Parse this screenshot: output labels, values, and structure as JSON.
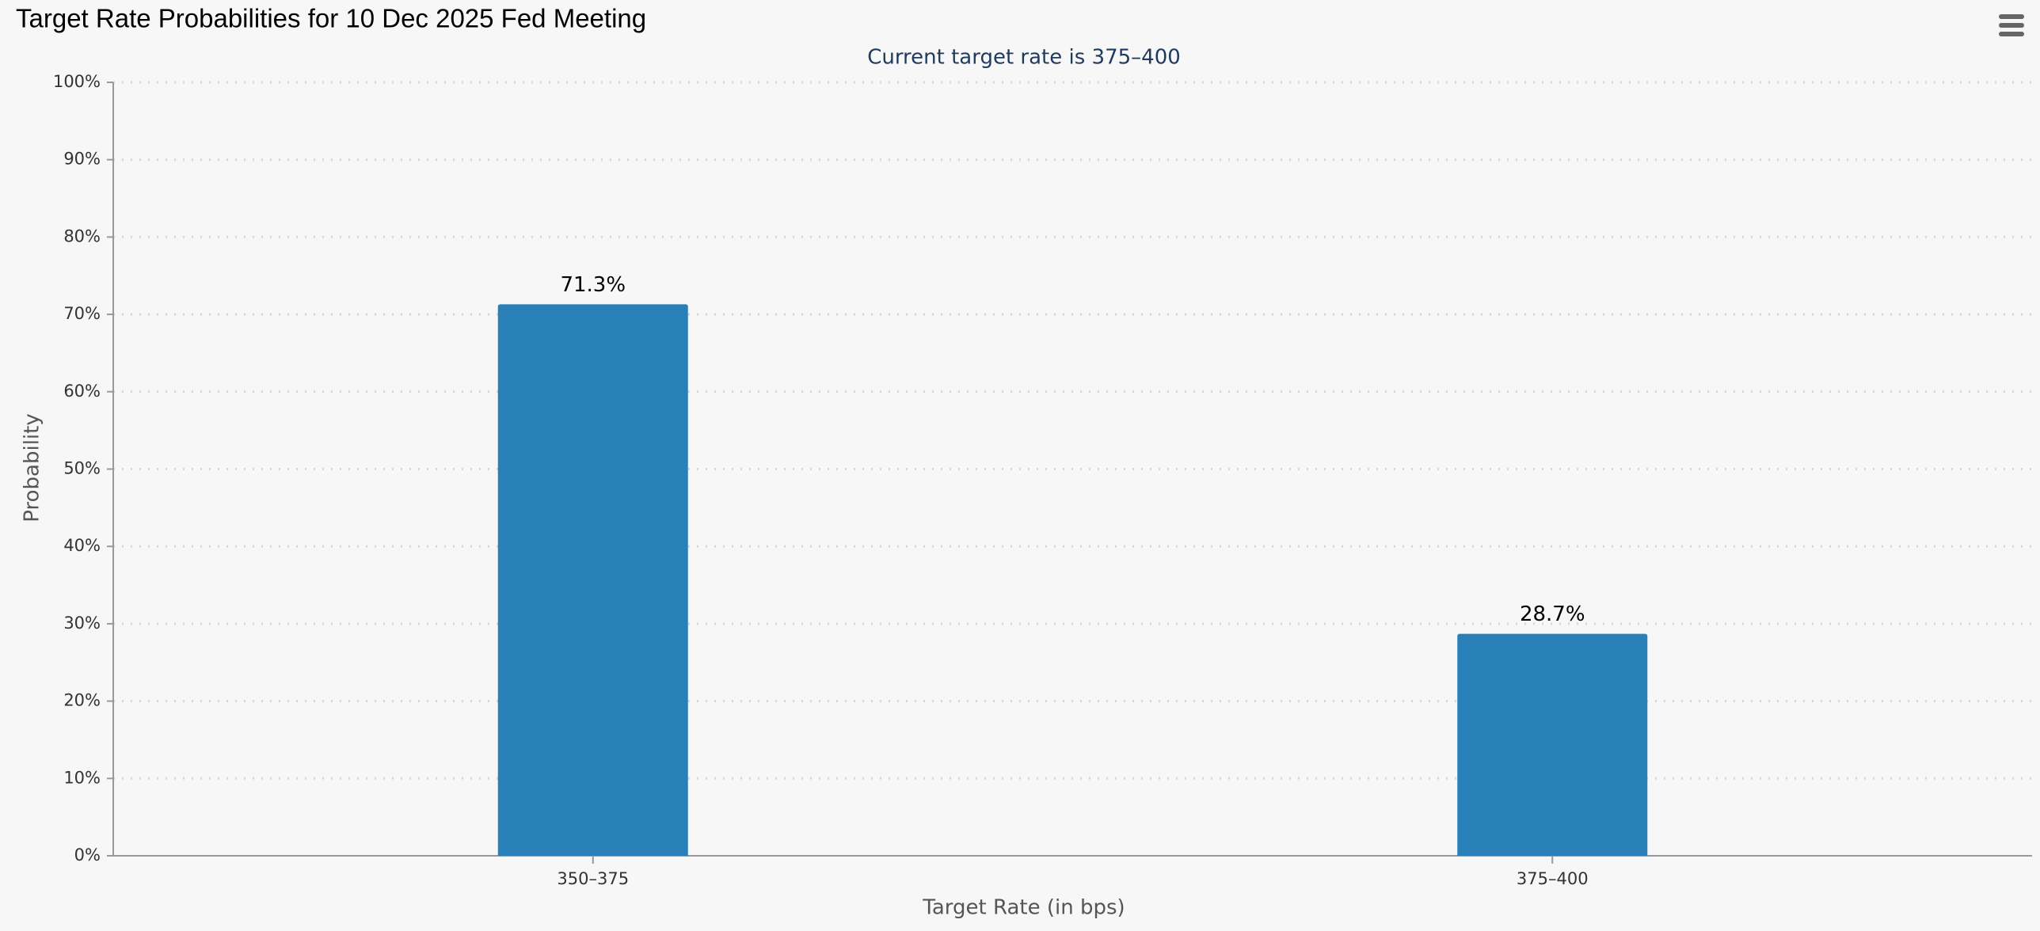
{
  "chart_data": {
    "type": "bar",
    "title": "Target Rate Probabilities for 10 Dec 2025 Fed Meeting",
    "subtitle": "Current target rate is 375–400",
    "x_label": "Target Rate (in bps)",
    "y_label": "Probability",
    "categories": [
      "350–375",
      "375–400"
    ],
    "values": [
      71.3,
      28.7
    ],
    "value_labels": [
      "71.3%",
      "28.7%"
    ],
    "color": "#2980b9",
    "ylim": [
      0,
      100
    ],
    "yticks": [
      {
        "value": 0,
        "label": "0%"
      },
      {
        "value": 10,
        "label": "10%"
      },
      {
        "value": 20,
        "label": "20%"
      },
      {
        "value": 30,
        "label": "30%"
      },
      {
        "value": 40,
        "label": "40%"
      },
      {
        "value": 50,
        "label": "50%"
      },
      {
        "value": 60,
        "label": "60%"
      },
      {
        "value": 70,
        "label": "70%"
      },
      {
        "value": 80,
        "label": "80%"
      },
      {
        "value": 90,
        "label": "90%"
      },
      {
        "value": 100,
        "label": "100%"
      }
    ],
    "grid": true
  }
}
